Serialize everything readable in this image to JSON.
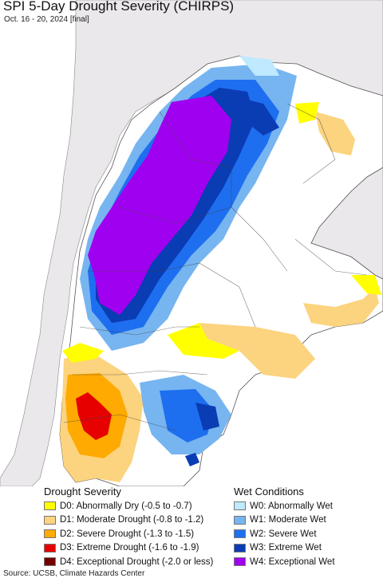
{
  "map": {
    "title": "SPI 5-Day Drought Severity (CHIRPS)",
    "subtitle": "Oct. 16 - 20, 2024 [final]",
    "colors": {
      "ocean": "#ffffff",
      "land_outside": "#ebe8eb",
      "background_land": "#ffffff",
      "border": "#555555"
    }
  },
  "legend": {
    "drought": {
      "title": "Drought Severity",
      "items": [
        {
          "label": "D0: Abnormally Dry (-0.5 to -0.7)",
          "color": "#ffff00"
        },
        {
          "label": "D1: Moderate Drought (-0.8 to -1.2)",
          "color": "#fcd37f"
        },
        {
          "label": "D2: Severe Drought (-1.3 to -1.5)",
          "color": "#ffaa00"
        },
        {
          "label": "D3: Extreme Drought (-1.6 to -1.9)",
          "color": "#e60000"
        },
        {
          "label": "D4: Exceptional Drought (-2.0 or less)",
          "color": "#730000"
        }
      ]
    },
    "wet": {
      "title": "Wet Conditions",
      "items": [
        {
          "label": "W0: Abnormally Wet",
          "color": "#bfe9ff"
        },
        {
          "label": "W1: Moderate Wet",
          "color": "#77b5f0"
        },
        {
          "label": "W2: Severe Wet",
          "color": "#1e6ef0"
        },
        {
          "label": "W3: Extreme Wet",
          "color": "#0a3cb4"
        },
        {
          "label": "W4: Exceptional Wet",
          "color": "#a000f0"
        }
      ]
    }
  },
  "source": "Source: UCSB, Climate Hazards Center"
}
